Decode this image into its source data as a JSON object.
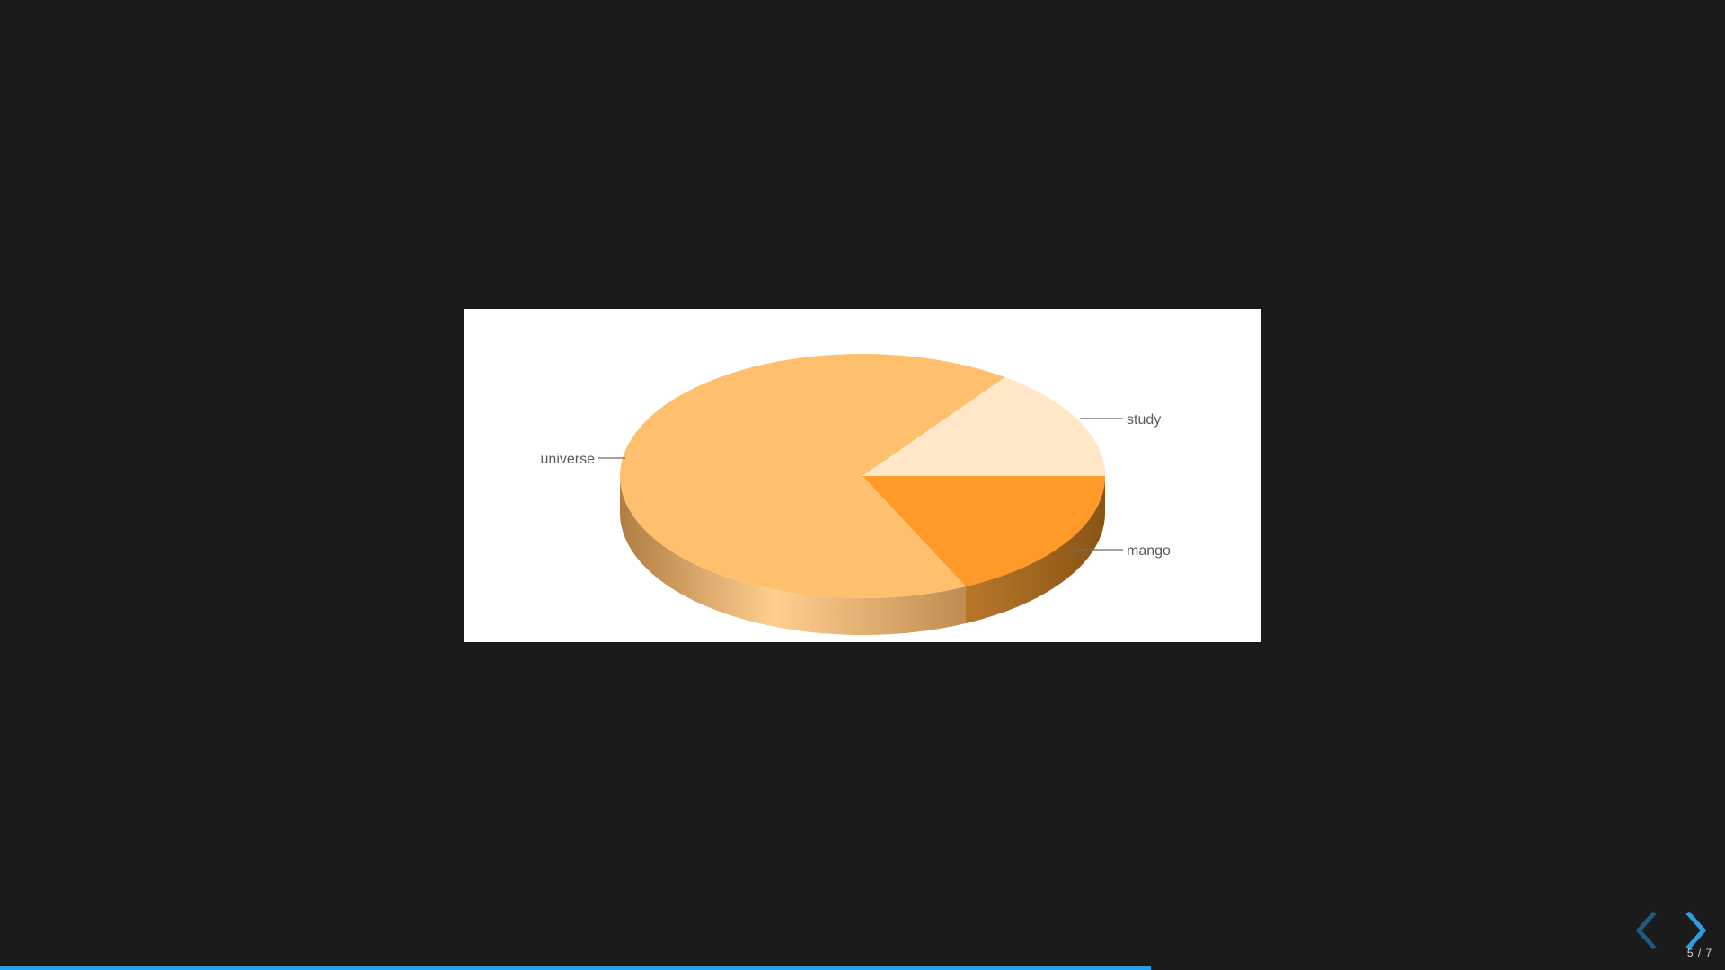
{
  "presentation": {
    "current_slide": 5,
    "total_slides": 7,
    "counter_text": "5 / 7",
    "progress": 0.667
  },
  "colors": {
    "background": "#1b1b1b",
    "accent": "#2a9fe0",
    "nav_disabled": "#1f5a82"
  },
  "icons": {
    "prev": "chevron-left-icon",
    "next": "chevron-right-icon"
  },
  "chart_data": {
    "type": "pie",
    "three_d": true,
    "title": "",
    "slices": [
      {
        "label": "universe",
        "value": 67,
        "color": "#ffc06e"
      },
      {
        "label": "study",
        "value": 15,
        "color": "#ffe7c8"
      },
      {
        "label": "mango",
        "value": 18,
        "color": "#ff9a28"
      }
    ]
  }
}
